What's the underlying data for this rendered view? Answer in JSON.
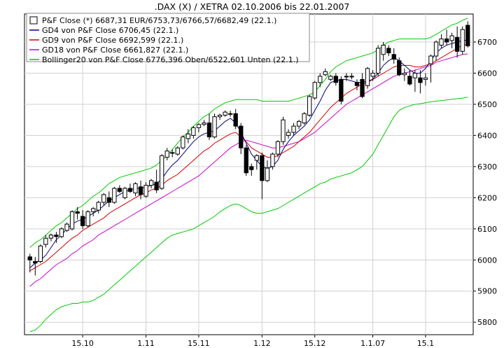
{
  "chart_data": {
    "type": "candlestick",
    "title": ".DAX (X) / XETRA 02.10.2006 bis 22.01.2007",
    "xlabel": "",
    "ylabel": "",
    "ylim": [
      5760,
      6790
    ],
    "grid": true,
    "legend_position": "top-left",
    "y_ticks": [
      "5800",
      "5900",
      "6000",
      "6100",
      "6200",
      "6300",
      "6400",
      "6500",
      "6600",
      "6700"
    ],
    "x_ticks": [
      {
        "label": "15.10",
        "index": 10
      },
      {
        "label": "1.11",
        "index": 22
      },
      {
        "label": "15.11",
        "index": 32
      },
      {
        "label": "1.12",
        "index": 44
      },
      {
        "label": "15.12",
        "index": 54
      },
      {
        "label": "1.1.07",
        "index": 65
      },
      {
        "label": "15.1",
        "index": 75
      }
    ],
    "legend": [
      {
        "label": "P&F Close (*) 6687,31 EUR/6753,73/6766,57/6682,49 (22.1.)",
        "kind": "candle"
      },
      {
        "label": "GD4 von P&F Close 6706,45 (22.1.)",
        "color": "#000080"
      },
      {
        "label": "GD9 von P&F Close 6692,599 (22.1.)",
        "color": "#d40000"
      },
      {
        "label": "GD18 von P&F Close 6661,827 (22.1.)",
        "color": "#cc00cc"
      },
      {
        "label": "Bollinger20 von P&F Close 6776,396 Oben/6522,601 Unten (22.1.)",
        "color": "#00cc00"
      }
    ],
    "candles": [
      [
        6010,
        6020,
        5960,
        6000
      ],
      [
        5995,
        6010,
        5950,
        5990
      ],
      [
        5995,
        6050,
        5990,
        6045
      ],
      [
        6050,
        6080,
        6040,
        6070
      ],
      [
        6070,
        6085,
        6060,
        6080
      ],
      [
        6080,
        6090,
        6055,
        6075
      ],
      [
        6075,
        6105,
        6070,
        6100
      ],
      [
        6095,
        6120,
        6090,
        6115
      ],
      [
        6100,
        6160,
        6095,
        6155
      ],
      [
        6155,
        6170,
        6130,
        6150
      ],
      [
        6140,
        6160,
        6100,
        6110
      ],
      [
        6110,
        6160,
        6105,
        6155
      ],
      [
        6155,
        6170,
        6140,
        6165
      ],
      [
        6160,
        6190,
        6150,
        6185
      ],
      [
        6185,
        6215,
        6175,
        6210
      ],
      [
        6200,
        6220,
        6170,
        6185
      ],
      [
        6185,
        6235,
        6180,
        6230
      ],
      [
        6230,
        6240,
        6215,
        6220
      ],
      [
        6200,
        6235,
        6195,
        6230
      ],
      [
        6230,
        6245,
        6215,
        6220
      ],
      [
        6215,
        6250,
        6205,
        6245
      ],
      [
        6235,
        6255,
        6195,
        6210
      ],
      [
        6205,
        6250,
        6200,
        6240
      ],
      [
        6240,
        6260,
        6230,
        6255
      ],
      [
        6250,
        6290,
        6215,
        6225
      ],
      [
        6230,
        6340,
        6225,
        6335
      ],
      [
        6330,
        6360,
        6320,
        6350
      ],
      [
        6345,
        6355,
        6330,
        6345
      ],
      [
        6340,
        6365,
        6335,
        6360
      ],
      [
        6360,
        6400,
        6355,
        6395
      ],
      [
        6390,
        6420,
        6375,
        6405
      ],
      [
        6400,
        6430,
        6390,
        6425
      ],
      [
        6425,
        6440,
        6410,
        6435
      ],
      [
        6435,
        6450,
        6430,
        6440
      ],
      [
        6440,
        6470,
        6385,
        6395
      ],
      [
        6395,
        6470,
        6390,
        6460
      ],
      [
        6460,
        6470,
        6450,
        6465
      ],
      [
        6465,
        6480,
        6460,
        6475
      ],
      [
        6470,
        6480,
        6460,
        6470
      ],
      [
        6470,
        6485,
        6420,
        6430
      ],
      [
        6430,
        6440,
        6340,
        6360
      ],
      [
        6360,
        6370,
        6270,
        6280
      ],
      [
        6300,
        6310,
        6270,
        6290
      ],
      [
        6320,
        6340,
        6290,
        6335
      ],
      [
        6335,
        6345,
        6195,
        6255
      ],
      [
        6255,
        6320,
        6250,
        6295
      ],
      [
        6300,
        6345,
        6290,
        6340
      ],
      [
        6340,
        6385,
        6330,
        6380
      ],
      [
        6380,
        6460,
        6370,
        6450
      ],
      [
        6400,
        6420,
        6390,
        6410
      ],
      [
        6410,
        6440,
        6400,
        6430
      ],
      [
        6430,
        6450,
        6420,
        6445
      ],
      [
        6440,
        6475,
        6435,
        6470
      ],
      [
        6465,
        6530,
        6460,
        6525
      ],
      [
        6520,
        6575,
        6515,
        6570
      ],
      [
        6570,
        6600,
        6555,
        6590
      ],
      [
        6595,
        6615,
        6590,
        6605
      ],
      [
        6580,
        6595,
        6575,
        6590
      ],
      [
        6590,
        6600,
        6560,
        6570
      ],
      [
        6580,
        6590,
        6500,
        6510
      ],
      [
        6590,
        6600,
        6575,
        6590
      ],
      [
        6590,
        6600,
        6580,
        6590
      ],
      [
        6570,
        6580,
        6545,
        6560
      ],
      [
        6580,
        6600,
        6520,
        6525
      ],
      [
        6560,
        6620,
        6550,
        6615
      ],
      [
        6590,
        6610,
        6575,
        6600
      ],
      [
        6600,
        6690,
        6590,
        6680
      ],
      [
        6660,
        6700,
        6640,
        6690
      ],
      [
        6680,
        6690,
        6655,
        6665
      ],
      [
        6660,
        6680,
        6630,
        6645
      ],
      [
        6640,
        6650,
        6590,
        6595
      ],
      [
        6595,
        6615,
        6575,
        6600
      ],
      [
        6590,
        6610,
        6560,
        6565
      ],
      [
        6585,
        6610,
        6540,
        6600
      ],
      [
        6585,
        6610,
        6535,
        6570
      ],
      [
        6580,
        6600,
        6560,
        6585
      ],
      [
        6630,
        6660,
        6570,
        6655
      ],
      [
        6655,
        6705,
        6640,
        6700
      ],
      [
        6690,
        6725,
        6680,
        6710
      ],
      [
        6710,
        6740,
        6690,
        6700
      ],
      [
        6705,
        6730,
        6680,
        6720
      ],
      [
        6715,
        6750,
        6650,
        6670
      ],
      [
        6670,
        6750,
        6660,
        6740
      ],
      [
        6753.73,
        6766.57,
        6682.49,
        6687.31
      ]
    ],
    "gd4": [
      5975,
      5990,
      6000,
      6015,
      6040,
      6065,
      6080,
      6100,
      6115,
      6125,
      6130,
      6140,
      6150,
      6160,
      6175,
      6190,
      6200,
      6210,
      6220,
      6225,
      6230,
      6230,
      6235,
      6240,
      6245,
      6260,
      6285,
      6305,
      6320,
      6340,
      6360,
      6380,
      6395,
      6405,
      6410,
      6415,
      6430,
      6445,
      6455,
      6440,
      6410,
      6375,
      6340,
      6320,
      6300,
      6295,
      6300,
      6320,
      6355,
      6380,
      6400,
      6415,
      6430,
      6450,
      6480,
      6510,
      6545,
      6570,
      6575,
      6580,
      6580,
      6575,
      6570,
      6570,
      6575,
      6580,
      6600,
      6625,
      6640,
      6650,
      6640,
      6625,
      6610,
      6600,
      6600,
      6615,
      6640,
      6665,
      6680,
      6690,
      6695,
      6700,
      6705,
      6706.45
    ],
    "gd9": [
      5965,
      5975,
      5985,
      5995,
      6010,
      6025,
      6040,
      6055,
      6070,
      6080,
      6095,
      6105,
      6115,
      6125,
      6135,
      6150,
      6160,
      6170,
      6180,
      6190,
      6200,
      6210,
      6215,
      6225,
      6230,
      6240,
      6255,
      6265,
      6275,
      6290,
      6305,
      6320,
      6335,
      6350,
      6360,
      6375,
      6385,
      6395,
      6405,
      6410,
      6395,
      6380,
      6360,
      6350,
      6340,
      6330,
      6330,
      6335,
      6345,
      6355,
      6365,
      6380,
      6395,
      6410,
      6430,
      6450,
      6470,
      6490,
      6505,
      6520,
      6535,
      6545,
      6555,
      6565,
      6570,
      6580,
      6590,
      6600,
      6610,
      6620,
      6625,
      6625,
      6625,
      6620,
      6620,
      6625,
      6630,
      6640,
      6650,
      6660,
      6670,
      6680,
      6690,
      6692.6
    ],
    "gd18": [
      5915,
      5930,
      5940,
      5955,
      5970,
      5985,
      5995,
      6005,
      6020,
      6030,
      6045,
      6055,
      6065,
      6080,
      6090,
      6100,
      6110,
      6120,
      6130,
      6140,
      6150,
      6160,
      6170,
      6180,
      6190,
      6200,
      6210,
      6220,
      6230,
      6240,
      6250,
      6260,
      6270,
      6285,
      6300,
      6315,
      6330,
      6345,
      6360,
      6370,
      6380,
      6385,
      6380,
      6375,
      6370,
      6365,
      6360,
      6360,
      6365,
      6370,
      6375,
      6380,
      6390,
      6400,
      6410,
      6425,
      6440,
      6455,
      6470,
      6485,
      6500,
      6510,
      6520,
      6530,
      6540,
      6550,
      6560,
      6570,
      6580,
      6590,
      6595,
      6600,
      6605,
      6610,
      6615,
      6620,
      6625,
      6635,
      6640,
      6645,
      6650,
      6655,
      6660,
      6661.8
    ],
    "boll_upper": [
      6040,
      6055,
      6065,
      6080,
      6095,
      6110,
      6120,
      6135,
      6150,
      6165,
      6175,
      6190,
      6205,
      6215,
      6230,
      6245,
      6255,
      6265,
      6270,
      6275,
      6280,
      6285,
      6290,
      6295,
      6305,
      6320,
      6335,
      6355,
      6375,
      6395,
      6410,
      6430,
      6445,
      6460,
      6470,
      6485,
      6495,
      6505,
      6510,
      6515,
      6515,
      6515,
      6515,
      6515,
      6510,
      6510,
      6510,
      6510,
      6510,
      6510,
      6515,
      6520,
      6525,
      6530,
      6540,
      6560,
      6580,
      6605,
      6620,
      6630,
      6640,
      6645,
      6650,
      6655,
      6660,
      6665,
      6675,
      6690,
      6700,
      6705,
      6710,
      6710,
      6710,
      6710,
      6710,
      6710,
      6715,
      6725,
      6735,
      6745,
      6755,
      6760,
      6770,
      6776.4
    ],
    "boll_lower": [
      5770,
      5775,
      5790,
      5810,
      5825,
      5840,
      5850,
      5855,
      5860,
      5860,
      5865,
      5865,
      5870,
      5880,
      5890,
      5905,
      5920,
      5935,
      5950,
      5965,
      5980,
      5995,
      6010,
      6025,
      6040,
      6055,
      6070,
      6080,
      6085,
      6090,
      6095,
      6100,
      6110,
      6120,
      6130,
      6140,
      6155,
      6165,
      6175,
      6180,
      6175,
      6165,
      6155,
      6150,
      6150,
      6155,
      6160,
      6165,
      6175,
      6185,
      6195,
      6205,
      6215,
      6225,
      6235,
      6245,
      6250,
      6260,
      6265,
      6270,
      6275,
      6280,
      6290,
      6300,
      6320,
      6340,
      6370,
      6400,
      6430,
      6460,
      6480,
      6490,
      6495,
      6500,
      6502,
      6505,
      6508,
      6510,
      6512,
      6514,
      6516,
      6518,
      6520,
      6522.6
    ]
  }
}
